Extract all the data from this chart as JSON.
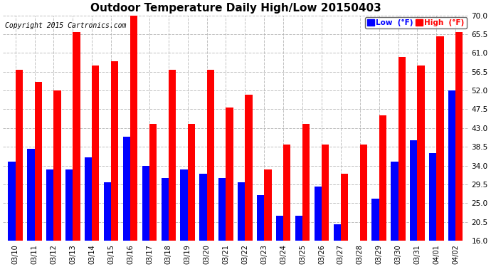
{
  "title": "Outdoor Temperature Daily High/Low 20150403",
  "copyright": "Copyright 2015 Cartronics.com",
  "legend_low_label": "Low  (°F)",
  "legend_high_label": "High  (°F)",
  "dates": [
    "03/10",
    "03/11",
    "03/12",
    "03/13",
    "03/14",
    "03/15",
    "03/16",
    "03/17",
    "03/18",
    "03/19",
    "03/20",
    "03/21",
    "03/22",
    "03/23",
    "03/24",
    "03/25",
    "03/26",
    "03/27",
    "03/28",
    "03/29",
    "03/30",
    "03/31",
    "04/01",
    "04/02"
  ],
  "highs": [
    57,
    54,
    52,
    66,
    58,
    59,
    71,
    44,
    57,
    44,
    57,
    48,
    51,
    33,
    39,
    44,
    39,
    32,
    39,
    46,
    60,
    58,
    65,
    66
  ],
  "lows": [
    35,
    38,
    33,
    33,
    36,
    30,
    41,
    34,
    31,
    33,
    32,
    31,
    30,
    27,
    22,
    22,
    29,
    20,
    16,
    26,
    35,
    40,
    37,
    52
  ],
  "ylim": [
    16,
    70
  ],
  "yticks": [
    16.0,
    20.5,
    25.0,
    29.5,
    34.0,
    38.5,
    43.0,
    47.5,
    52.0,
    56.5,
    61.0,
    65.5,
    70.0
  ],
  "bar_color_low": "#0000ff",
  "bar_color_high": "#ff0000",
  "background_color": "#ffffff",
  "plot_background": "#ffffff",
  "grid_color": "#b0b0b0",
  "title_fontsize": 11,
  "copyright_fontsize": 7,
  "bar_width": 0.38,
  "figsize": [
    6.9,
    3.75
  ],
  "dpi": 100
}
